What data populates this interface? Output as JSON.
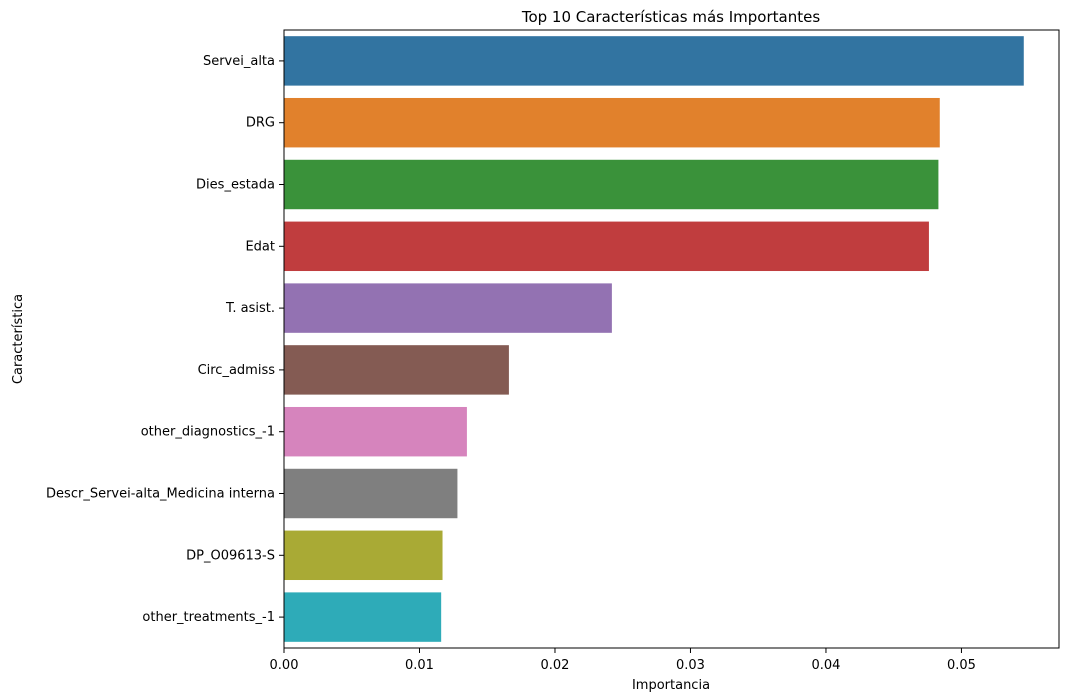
{
  "chart_data": {
    "type": "bar",
    "orientation": "horizontal",
    "title": "Top 10 Características más Importantes",
    "xlabel": "Importancia",
    "ylabel": "Característica",
    "xlim": [
      0,
      0.0572
    ],
    "xticks": [
      0.0,
      0.01,
      0.02,
      0.03,
      0.04,
      0.05
    ],
    "xtick_labels": [
      "0.00",
      "0.01",
      "0.02",
      "0.03",
      "0.04",
      "0.05"
    ],
    "grid": false,
    "categories": [
      "Servei_alta",
      "DRG",
      "Dies_estada",
      "Edat",
      "T. asist.",
      "Circ_admiss",
      "other_diagnostics_-1",
      "Descr_Servei-alta_Medicina interna",
      "DP_O09613-S",
      "other_treatments_-1"
    ],
    "values": [
      0.0546,
      0.0484,
      0.0483,
      0.0476,
      0.0242,
      0.0166,
      0.0135,
      0.0128,
      0.0117,
      0.0116
    ],
    "colors": [
      "#3274a1",
      "#e1812c",
      "#3a923a",
      "#c03d3e",
      "#9372b2",
      "#845b53",
      "#d684bd",
      "#7f7f7f",
      "#a9aa35",
      "#2eabb8"
    ]
  }
}
